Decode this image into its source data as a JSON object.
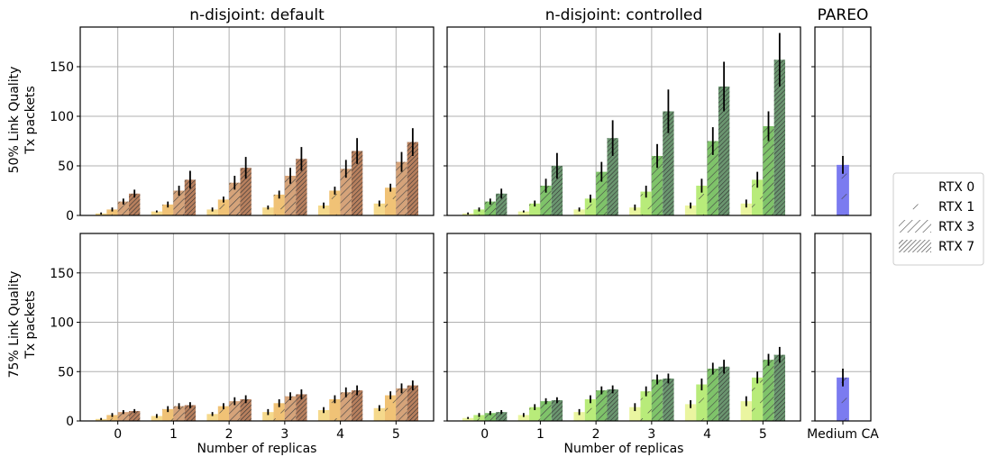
{
  "chart_data": {
    "type": "bar",
    "xlabel": "Number of replicas",
    "categories": [
      "0",
      "1",
      "2",
      "3",
      "4",
      "5"
    ],
    "ylim": [
      0,
      190
    ],
    "yticks": [
      0,
      50,
      100,
      150
    ],
    "grid": true,
    "legend": {
      "placement": "right",
      "entries": [
        "RTX 0",
        "RTX 1",
        "RTX 3",
        "RTX 7"
      ]
    },
    "rows": [
      {
        "label_line1": "50% Link Quality",
        "label_line2": "Tx packets"
      },
      {
        "label_line1": "75% Link Quality",
        "label_line2": "Tx packets"
      }
    ],
    "panels": [
      {
        "title": "n-disjoint: default",
        "row": 0,
        "colors": [
          "#f5d98c",
          "#f0c276",
          "#d5a37a",
          "#b8805e"
        ],
        "series": [
          {
            "name": "RTX 0",
            "values": [
              2,
              4,
              6,
              8,
              10,
              12
            ],
            "errors": [
              1,
              1,
              2,
              2,
              3,
              3
            ]
          },
          {
            "name": "RTX 1",
            "values": [
              6,
              11,
              16,
              21,
              25,
              28
            ],
            "errors": [
              2,
              3,
              3,
              4,
              4,
              4
            ]
          },
          {
            "name": "RTX 3",
            "values": [
              14,
              25,
              33,
              40,
              47,
              54
            ],
            "errors": [
              3,
              5,
              7,
              8,
              9,
              10
            ]
          },
          {
            "name": "RTX 7",
            "values": [
              22,
              36,
              48,
              57,
              65,
              74
            ],
            "errors": [
              4,
              9,
              11,
              12,
              13,
              14
            ]
          }
        ]
      },
      {
        "title": "n-disjoint: controlled",
        "row": 0,
        "colors": [
          "#eaf5a0",
          "#b8eb7a",
          "#7fc36a",
          "#6b9670"
        ],
        "series": [
          {
            "name": "RTX 0",
            "values": [
              2,
              4,
              6,
              8,
              10,
              12
            ],
            "errors": [
              1,
              1,
              2,
              3,
              3,
              4
            ]
          },
          {
            "name": "RTX 1",
            "values": [
              6,
              12,
              17,
              24,
              30,
              36
            ],
            "errors": [
              2,
              3,
              4,
              6,
              7,
              8
            ]
          },
          {
            "name": "RTX 3",
            "values": [
              14,
              30,
              44,
              60,
              75,
              90
            ],
            "errors": [
              3,
              7,
              10,
              12,
              14,
              15
            ]
          },
          {
            "name": "RTX 7",
            "values": [
              22,
              50,
              78,
              105,
              130,
              157
            ],
            "errors": [
              5,
              13,
              18,
              22,
              25,
              27
            ]
          }
        ]
      },
      {
        "title": "PAREO",
        "row": 0,
        "categories": [
          "Medium CA"
        ],
        "colors": [
          "#7b7bf0"
        ],
        "series": [
          {
            "name": "RTX 1",
            "values": [
              51
            ],
            "errors": [
              9
            ]
          }
        ]
      },
      {
        "title": "",
        "row": 1,
        "colors": [
          "#f5d98c",
          "#f0c276",
          "#d5a37a",
          "#b8805e"
        ],
        "series": [
          {
            "name": "RTX 0",
            "values": [
              2,
              5,
              7,
              9,
              11,
              13
            ],
            "errors": [
              1,
              2,
              2,
              3,
              3,
              3
            ]
          },
          {
            "name": "RTX 1",
            "values": [
              6,
              12,
              15,
              18,
              22,
              26
            ],
            "errors": [
              2,
              3,
              3,
              4,
              4,
              4
            ]
          },
          {
            "name": "RTX 3",
            "values": [
              9,
              15,
              20,
              25,
              29,
              33
            ],
            "errors": [
              2,
              3,
              4,
              4,
              5,
              5
            ]
          },
          {
            "name": "RTX 7",
            "values": [
              10,
              16,
              22,
              27,
              31,
              36
            ],
            "errors": [
              2,
              3,
              4,
              5,
              5,
              5
            ]
          }
        ]
      },
      {
        "title": "",
        "row": 1,
        "colors": [
          "#eaf5a0",
          "#b8eb7a",
          "#7fc36a",
          "#6b9670"
        ],
        "series": [
          {
            "name": "RTX 0",
            "values": [
              3,
              6,
              9,
              14,
              17,
              20
            ],
            "errors": [
              1,
              2,
              3,
              4,
              4,
              5
            ]
          },
          {
            "name": "RTX 1",
            "values": [
              6,
              14,
              22,
              30,
              37,
              44
            ],
            "errors": [
              2,
              3,
              4,
              5,
              6,
              6
            ]
          },
          {
            "name": "RTX 3",
            "values": [
              8,
              20,
              31,
              42,
              53,
              62
            ],
            "errors": [
              2,
              3,
              4,
              5,
              6,
              6
            ]
          },
          {
            "name": "RTX 7",
            "values": [
              9,
              21,
              32,
              43,
              55,
              67
            ],
            "errors": [
              2,
              3,
              4,
              5,
              7,
              8
            ]
          }
        ]
      },
      {
        "title": "",
        "row": 1,
        "categories": [
          "Medium CA"
        ],
        "colors": [
          "#7b7bf0"
        ],
        "series": [
          {
            "name": "RTX 1",
            "values": [
              44
            ],
            "errors": [
              9
            ]
          }
        ]
      }
    ]
  }
}
